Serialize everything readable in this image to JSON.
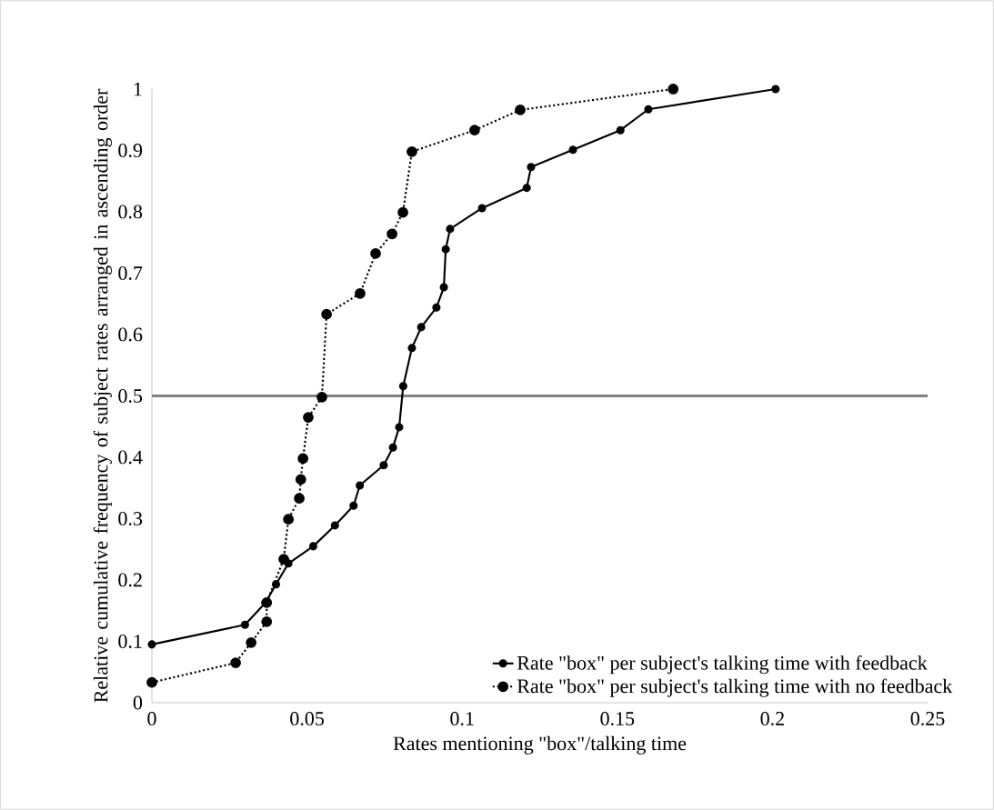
{
  "chart_data": {
    "type": "line",
    "xlabel": "Rates mentioning \"box\"/talking time",
    "ylabel": "Relative cumulative frequency of subject rates arranged in ascending order",
    "xlim": [
      0,
      0.25
    ],
    "ylim": [
      0,
      1
    ],
    "xticks": [
      0,
      0.05,
      0.1,
      0.15,
      0.2,
      0.25
    ],
    "yticks": [
      0,
      0.1,
      0.2,
      0.3,
      0.4,
      0.5,
      0.6,
      0.7,
      0.8,
      0.9,
      1
    ],
    "grid": false,
    "legend": "bottom right",
    "marker": "circle",
    "ref_lines": [
      {
        "axis": "y",
        "value": 0.5,
        "color": "#808080"
      }
    ],
    "series": [
      {
        "name": "Rate \"box\" per subject's talking time with feedback",
        "color": "#000000",
        "line_style": "solid",
        "x": [
          0,
          0.03,
          0.0366,
          0.04,
          0.044,
          0.052,
          0.059,
          0.065,
          0.067,
          0.0747,
          0.0777,
          0.0797,
          0.081,
          0.0838,
          0.0868,
          0.0917,
          0.0941,
          0.0947,
          0.0961,
          0.1064,
          0.1208,
          0.1222,
          0.1357,
          0.151,
          0.16,
          0.201
        ],
        "values": [
          0.095,
          0.127,
          0.163,
          0.193,
          0.227,
          0.255,
          0.289,
          0.321,
          0.354,
          0.387,
          0.416,
          0.449,
          0.516,
          0.578,
          0.612,
          0.644,
          0.677,
          0.739,
          0.772,
          0.806,
          0.839,
          0.873,
          0.901,
          0.933,
          0.967,
          1.0
        ]
      },
      {
        "name": "Rate \"box\" per subject's talking time with no feedback",
        "color": "#000000",
        "line_style": "dotted",
        "x": [
          0,
          0.027,
          0.032,
          0.037,
          0.037,
          0.0425,
          0.044,
          0.0475,
          0.048,
          0.0487,
          0.0504,
          0.0548,
          0.0563,
          0.0671,
          0.0721,
          0.0774,
          0.0809,
          0.0838,
          0.104,
          0.1187,
          0.168
        ],
        "values": [
          0.033,
          0.065,
          0.098,
          0.132,
          0.163,
          0.234,
          0.299,
          0.333,
          0.364,
          0.398,
          0.465,
          0.498,
          0.633,
          0.667,
          0.732,
          0.764,
          0.799,
          0.898,
          0.933,
          0.966,
          1.0
        ]
      }
    ]
  }
}
